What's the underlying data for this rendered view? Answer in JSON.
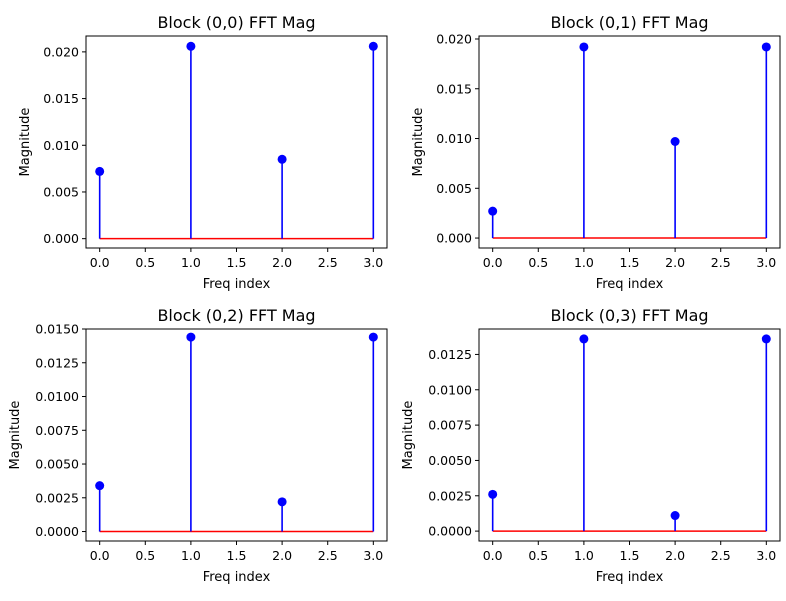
{
  "colors": {
    "stem": "#0000ff",
    "baseline": "#ff0000",
    "axis": "#000000"
  },
  "chart_data": [
    {
      "type": "stem",
      "title": "Block (0,0) FFT Mag",
      "xlabel": "Freq index",
      "ylabel": "Magnitude",
      "x": [
        0,
        1,
        2,
        3
      ],
      "values": [
        0.0072,
        0.0206,
        0.0085,
        0.0206
      ],
      "xlim": [
        -0.15,
        3.15
      ],
      "ylim": [
        -0.001,
        0.0217
      ],
      "xticks": [
        0,
        0.5,
        1,
        1.5,
        2,
        2.5,
        3
      ],
      "xtick_labels": [
        "0.0",
        "0.5",
        "1.0",
        "1.5",
        "2.0",
        "2.5",
        "3.0"
      ],
      "yticks": [
        0,
        0.005,
        0.01,
        0.015,
        0.02
      ],
      "ytick_labels": [
        "0.000",
        "0.005",
        "0.010",
        "0.015",
        "0.020"
      ],
      "grid": false
    },
    {
      "type": "stem",
      "title": "Block (0,1) FFT Mag",
      "xlabel": "Freq index",
      "ylabel": "Magnitude",
      "x": [
        0,
        1,
        2,
        3
      ],
      "values": [
        0.0027,
        0.0192,
        0.0097,
        0.0192
      ],
      "xlim": [
        -0.15,
        3.15
      ],
      "ylim": [
        -0.001,
        0.0203
      ],
      "xticks": [
        0,
        0.5,
        1,
        1.5,
        2,
        2.5,
        3
      ],
      "xtick_labels": [
        "0.0",
        "0.5",
        "1.0",
        "1.5",
        "2.0",
        "2.5",
        "3.0"
      ],
      "yticks": [
        0,
        0.005,
        0.01,
        0.015,
        0.02
      ],
      "ytick_labels": [
        "0.000",
        "0.005",
        "0.010",
        "0.015",
        "0.020"
      ],
      "grid": false
    },
    {
      "type": "stem",
      "title": "Block (0,2) FFT Mag",
      "xlabel": "Freq index",
      "ylabel": "Magnitude",
      "x": [
        0,
        1,
        2,
        3
      ],
      "values": [
        0.0034,
        0.0144,
        0.0022,
        0.0144
      ],
      "xlim": [
        -0.15,
        3.15
      ],
      "ylim": [
        -0.0007,
        0.015
      ],
      "xticks": [
        0,
        0.5,
        1,
        1.5,
        2,
        2.5,
        3
      ],
      "xtick_labels": [
        "0.0",
        "0.5",
        "1.0",
        "1.5",
        "2.0",
        "2.5",
        "3.0"
      ],
      "yticks": [
        0,
        0.0025,
        0.005,
        0.0075,
        0.01,
        0.0125,
        0.015
      ],
      "ytick_labels": [
        "0.0000",
        "0.0025",
        "0.0050",
        "0.0075",
        "0.0100",
        "0.0125",
        "0.0150"
      ],
      "grid": false
    },
    {
      "type": "stem",
      "title": "Block (0,3) FFT Mag",
      "xlabel": "Freq index",
      "ylabel": "Magnitude",
      "x": [
        0,
        1,
        2,
        3
      ],
      "values": [
        0.0026,
        0.0136,
        0.0011,
        0.0136
      ],
      "xlim": [
        -0.15,
        3.15
      ],
      "ylim": [
        -0.0007,
        0.0143
      ],
      "xticks": [
        0,
        0.5,
        1,
        1.5,
        2,
        2.5,
        3
      ],
      "xtick_labels": [
        "0.0",
        "0.5",
        "1.0",
        "1.5",
        "2.0",
        "2.5",
        "3.0"
      ],
      "yticks": [
        0,
        0.0025,
        0.005,
        0.0075,
        0.01,
        0.0125
      ],
      "ytick_labels": [
        "0.0000",
        "0.0025",
        "0.0050",
        "0.0075",
        "0.0100",
        "0.0125"
      ],
      "grid": false
    }
  ]
}
